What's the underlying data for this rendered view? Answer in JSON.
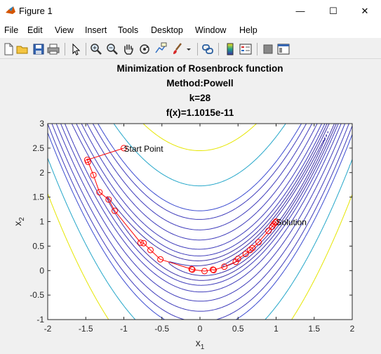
{
  "window": {
    "title": "Figure 1",
    "minimize_glyph": "—",
    "maximize_glyph": "☐",
    "close_glyph": "✕"
  },
  "menu": [
    "File",
    "Edit",
    "View",
    "Insert",
    "Tools",
    "Desktop",
    "Window",
    "Help"
  ],
  "toolbar": {
    "icons": [
      "new-figure-icon",
      "open-file-icon",
      "save-icon",
      "print-icon",
      "edit-plot-arrow-icon",
      "zoom-in-icon",
      "zoom-out-icon",
      "pan-hand-icon",
      "rotate-3d-icon",
      "data-cursor-icon",
      "brush-icon",
      "link-plot-icon",
      "colorbar-icon",
      "legend-icon",
      "hide-plot-tools-icon",
      "show-plot-tools-icon"
    ]
  },
  "chart_data": {
    "type": "line",
    "title": [
      "Minimization of Rosenbrock function",
      "Method:Powell",
      "k=28",
      "f(x)=1.1015e-11"
    ],
    "xlabel": "x",
    "xlabel_sub": "1",
    "ylabel": "x",
    "ylabel_sub": "2",
    "xlim": [
      -2,
      2
    ],
    "ylim": [
      -1,
      3
    ],
    "xticks": [
      "-2",
      "-1.5",
      "-1",
      "-0.5",
      "0",
      "0.5",
      "1",
      "1.5",
      "2"
    ],
    "yticks": [
      "-1",
      "-0.5",
      "0",
      "0.5",
      "1",
      "1.5",
      "2",
      "2.5",
      "3"
    ],
    "grid": false,
    "contours": {
      "function": "rosenbrock",
      "levels": [
        0.5,
        2,
        5,
        10,
        20,
        40,
        70,
        110,
        150,
        300,
        600
      ],
      "colors": [
        "#3b30a8",
        "#3b30a8",
        "#3b30a8",
        "#3d3aba",
        "#3d3aba",
        "#3d3aba",
        "#3d3aba",
        "#3d3aba",
        "#3a4ad0",
        "#23a6c9",
        "#e6e600"
      ]
    },
    "path": {
      "color": "#ff0000",
      "marker": "circle",
      "points": [
        [
          -1.0,
          2.5
        ],
        [
          -1.48,
          2.26
        ],
        [
          -1.47,
          2.22
        ],
        [
          -1.4,
          1.95
        ],
        [
          -1.32,
          1.6
        ],
        [
          -1.2,
          1.45
        ],
        [
          -1.12,
          1.22
        ],
        [
          -0.78,
          0.57
        ],
        [
          -0.74,
          0.56
        ],
        [
          -0.65,
          0.42
        ],
        [
          -0.52,
          0.23
        ],
        [
          -0.11,
          0.03
        ],
        [
          -0.1,
          0.02
        ],
        [
          0.06,
          -0.01
        ],
        [
          0.17,
          0.02
        ],
        [
          0.18,
          0.01
        ],
        [
          0.32,
          0.08
        ],
        [
          0.47,
          0.18
        ],
        [
          0.5,
          0.24
        ],
        [
          0.6,
          0.34
        ],
        [
          0.66,
          0.42
        ],
        [
          0.69,
          0.46
        ],
        [
          0.77,
          0.58
        ],
        [
          0.9,
          0.81
        ],
        [
          0.95,
          0.9
        ],
        [
          0.97,
          0.95
        ],
        [
          0.99,
          0.98
        ],
        [
          1.0,
          1.0
        ]
      ]
    },
    "annotations": [
      {
        "text": "Start Point",
        "x": -1.0,
        "y": 2.5
      },
      {
        "text": "Solution",
        "x": 1.0,
        "y": 1.0
      }
    ]
  }
}
